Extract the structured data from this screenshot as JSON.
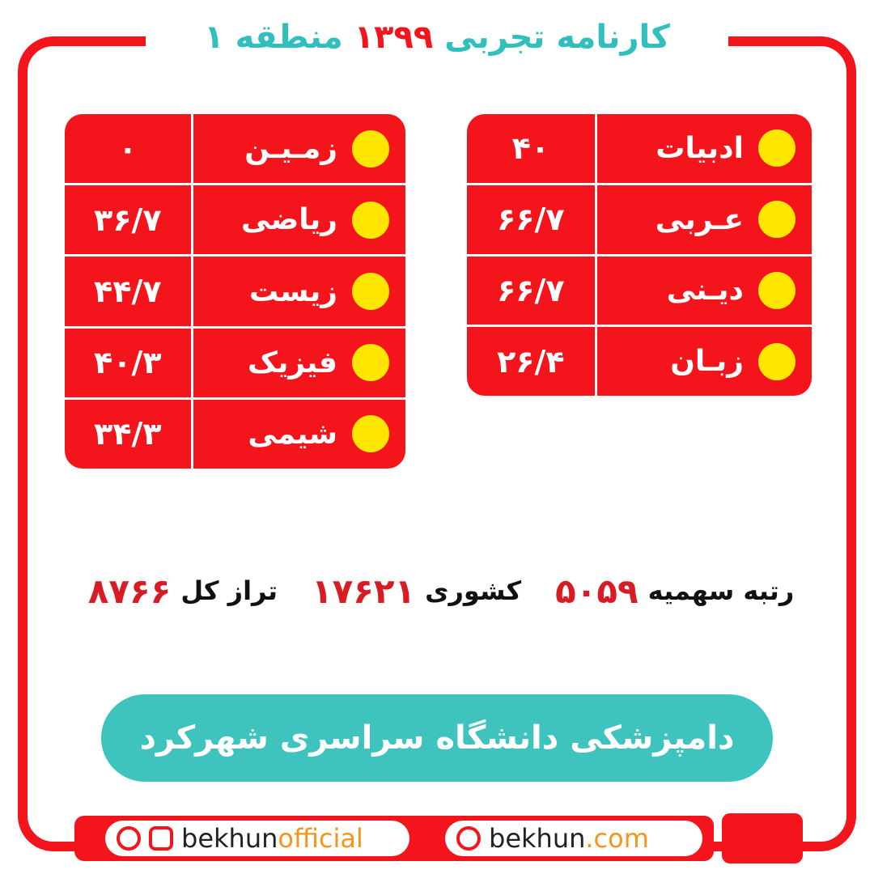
{
  "header": {
    "title_parts": [
      "کارنامه تجربی",
      "۱۳۹۹",
      "منطقه ۱"
    ]
  },
  "tables": [
    {
      "rows": [
        {
          "subject": "ادبیات",
          "score": "۴۰"
        },
        {
          "subject": "عـربی",
          "score": "۶۶/۷"
        },
        {
          "subject": "دیـنی",
          "score": "۶۶/۷"
        },
        {
          "subject": "زبـان",
          "score": "۲۶/۴"
        }
      ]
    },
    {
      "rows": [
        {
          "subject": "زمـیـن",
          "score": "۰"
        },
        {
          "subject": "ریاضی",
          "score": "۳۶/۷"
        },
        {
          "subject": "زیست",
          "score": "۴۴/۷"
        },
        {
          "subject": "فیزیک",
          "score": "۴۰/۳"
        },
        {
          "subject": "شیمی",
          "score": "۳۴/۳"
        }
      ]
    }
  ],
  "stats": [
    {
      "label": "رتبه سهمیه",
      "value": "۵۰۵۹"
    },
    {
      "label": "کشوری",
      "value": "۱۷۶۲۱"
    },
    {
      "label": "تراز کل",
      "value": "۸۷۶۶"
    }
  ],
  "result": "دامپزشکی دانشگاه سراسری شهرکرد",
  "footer": {
    "social": [
      "bekhun",
      "official"
    ],
    "website": [
      "bekhun",
      ".com"
    ]
  }
}
